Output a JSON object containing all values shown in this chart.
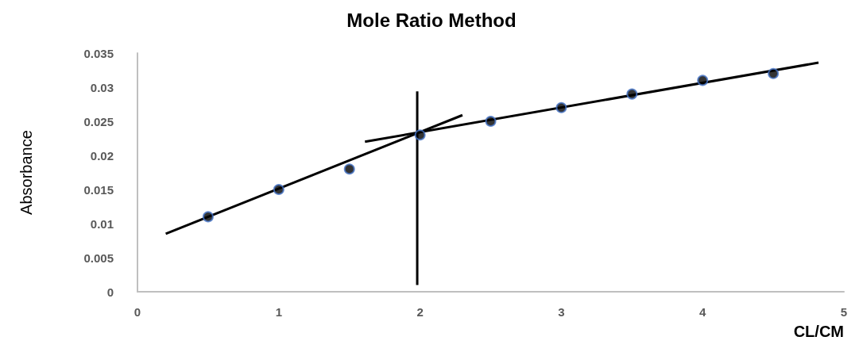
{
  "chart_data": {
    "type": "scatter",
    "title": "Mole Ratio Method",
    "xlabel": "CL/CM",
    "ylabel": "Absorbance",
    "xlim": [
      0,
      5
    ],
    "xticks": [
      0,
      1,
      2,
      3,
      4,
      5
    ],
    "ylim": [
      0,
      0.035
    ],
    "yticks": [
      0,
      0.005,
      0.01,
      0.015,
      0.02,
      0.025,
      0.03,
      0.035
    ],
    "grid": false,
    "marker": "circle",
    "series": [
      {
        "color": "#000000",
        "x": [
          0.5,
          1,
          1.5,
          2,
          2.5,
          3,
          3.5,
          4,
          4.5
        ],
        "values": [
          0.011,
          0.015,
          0.018,
          0.023,
          0.025,
          0.027,
          0.029,
          0.031,
          0.032
        ]
      },
      {
        "type": "line",
        "color": "#000000",
        "marker": "none",
        "x": [
          0.2,
          2.3
        ],
        "values": [
          0.0085,
          0.0259
        ]
      },
      {
        "type": "line",
        "color": "#000000",
        "marker": "none",
        "x": [
          1.61,
          4.82
        ],
        "values": [
          0.022,
          0.0336
        ]
      },
      {
        "type": "line",
        "color": "#000000",
        "marker": "none",
        "x": [
          1.98,
          1.98
        ],
        "values": [
          0.0294,
          0.001
        ]
      }
    ]
  }
}
